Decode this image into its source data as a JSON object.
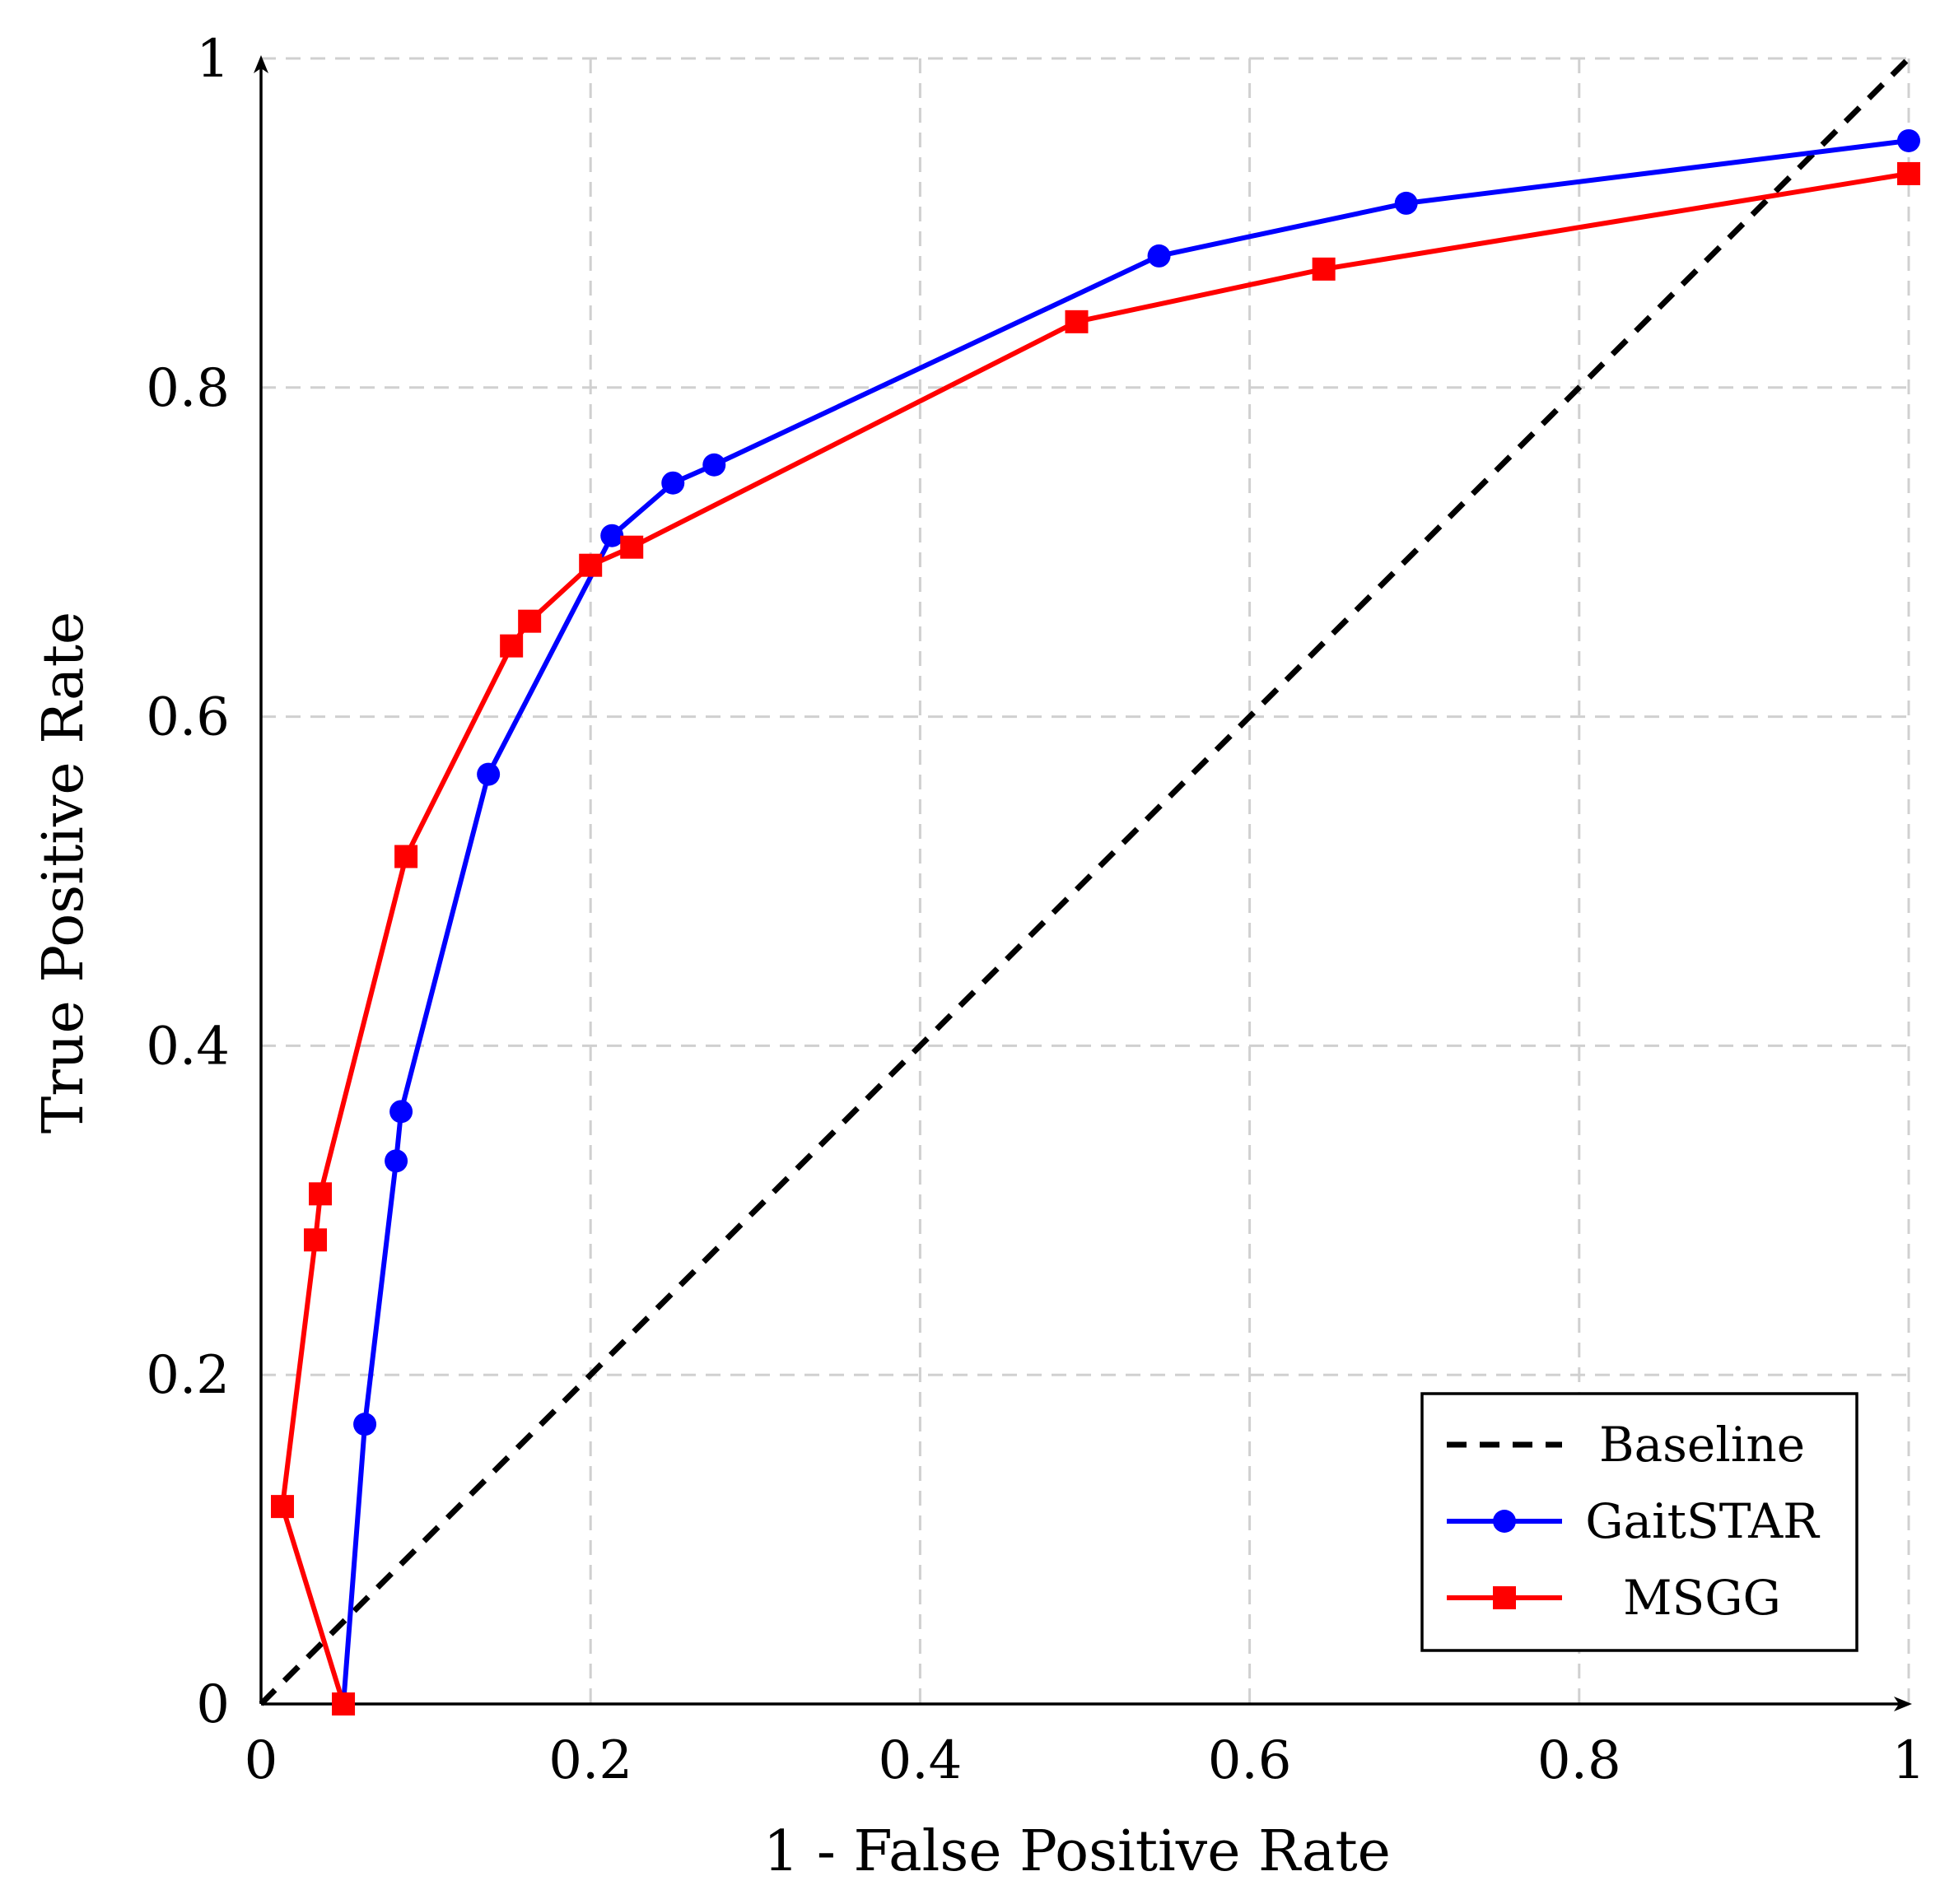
{
  "chart_data": {
    "type": "line",
    "title": "",
    "xlabel": "1 - False Positive Rate",
    "ylabel": "True Positive Rate",
    "xlim": [
      0,
      1
    ],
    "ylim": [
      0,
      1
    ],
    "grid": true,
    "x_ticks": [
      0,
      0.2,
      0.4,
      0.6,
      0.8,
      1
    ],
    "x_tick_labels": [
      "0",
      "0.2",
      "0.4",
      "0.6",
      "0.8",
      "1"
    ],
    "y_ticks": [
      0,
      0.2,
      0.4,
      0.6,
      0.8,
      1
    ],
    "y_tick_labels": [
      "0",
      "0.2",
      "0.4",
      "0.6",
      "0.8",
      "1"
    ],
    "legend_position": "bottom-right",
    "series": [
      {
        "name": "Baseline",
        "color": "#000000",
        "style": "dashed",
        "marker": "none",
        "x": [
          0,
          1
        ],
        "y": [
          0,
          1
        ]
      },
      {
        "name": "GaitSTAR",
        "color": "#0000ff",
        "style": "solid",
        "marker": "circle",
        "x": [
          0.05,
          0.063,
          0.082,
          0.085,
          0.138,
          0.213,
          0.25,
          0.275,
          0.545,
          0.695,
          1.0
        ],
        "y": [
          0.0,
          0.17,
          0.33,
          0.36,
          0.565,
          0.71,
          0.742,
          0.753,
          0.88,
          0.912,
          0.95
        ]
      },
      {
        "name": "MSGG",
        "color": "#ff0000",
        "style": "solid",
        "marker": "square",
        "x": [
          0.05,
          0.013,
          0.033,
          0.036,
          0.088,
          0.152,
          0.163,
          0.2,
          0.225,
          0.495,
          0.645,
          1.0
        ],
        "y": [
          0.0,
          0.12,
          0.282,
          0.31,
          0.515,
          0.643,
          0.658,
          0.692,
          0.703,
          0.84,
          0.872,
          0.93
        ]
      }
    ]
  }
}
